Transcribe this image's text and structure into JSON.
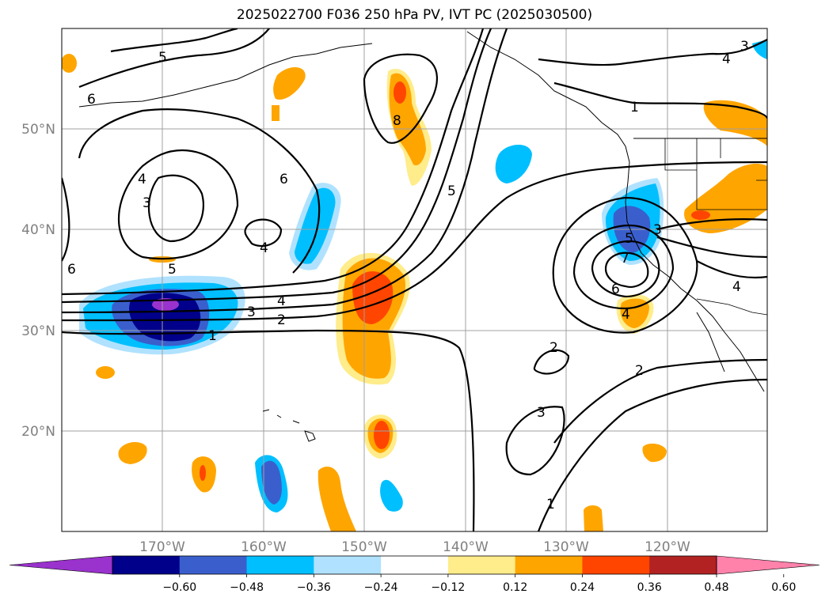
{
  "title": "2025022700 F036 250 hPa PV, IVT PC (2025030500)",
  "lat_labels": [
    "50°N",
    "40°N",
    "30°N",
    "20°N"
  ],
  "lon_labels": [
    "170°W",
    "160°W",
    "150°W",
    "140°W",
    "130°W",
    "120°W"
  ],
  "colorbar": {
    "tick_labels": [
      "−0.60",
      "−0.48",
      "−0.36",
      "−0.24",
      "−0.12",
      "0.12",
      "0.24",
      "0.36",
      "0.48",
      "0.60"
    ],
    "colors": [
      "#9a32cd",
      "#00008b",
      "#3a5fcd",
      "#00bfff",
      "#b0e2ff",
      "#ffffff",
      "#ffec8b",
      "#ffa500",
      "#ff4500",
      "#b22222",
      "#ff82ab"
    ]
  },
  "contour_labels": [
    "5",
    "6",
    "4",
    "3",
    "6",
    "6",
    "4",
    "5",
    "4",
    "3",
    "2",
    "1",
    "8",
    "5",
    "1",
    "3",
    "5",
    "7",
    "6",
    "4",
    "2",
    "3",
    "2",
    "1",
    "4",
    "3",
    "4"
  ],
  "shading_colors": {
    "purple": "#9a32cd",
    "navy": "#00008b",
    "blue": "#3a5fcd",
    "sky": "#00bfff",
    "lightblue": "#b0e2ff",
    "yellow": "#ffec8b",
    "orange": "#ffa500",
    "red": "#ff4500"
  }
}
